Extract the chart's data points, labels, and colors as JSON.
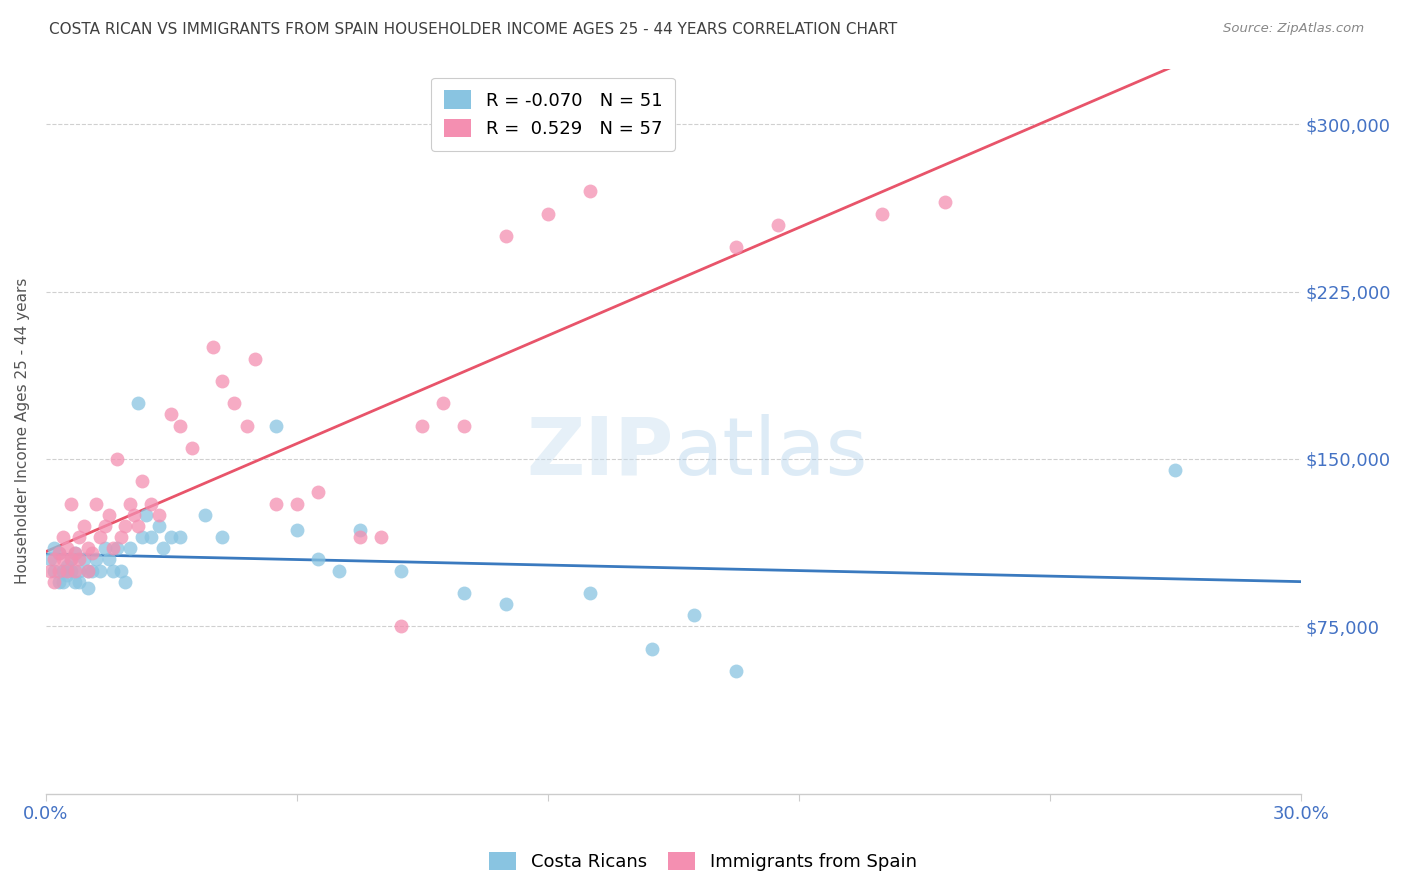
{
  "title": "COSTA RICAN VS IMMIGRANTS FROM SPAIN HOUSEHOLDER INCOME AGES 25 - 44 YEARS CORRELATION CHART",
  "source": "Source: ZipAtlas.com",
  "ylabel": "Householder Income Ages 25 - 44 years",
  "ytick_labels": [
    "$75,000",
    "$150,000",
    "$225,000",
    "$300,000"
  ],
  "ytick_values": [
    75000,
    150000,
    225000,
    300000
  ],
  "ylim": [
    0,
    325000
  ],
  "xlim": [
    0.0,
    0.3
  ],
  "watermark_zip": "ZIP",
  "watermark_atlas": "atlas",
  "legend_r1": "R = -0.070",
  "legend_n1": "N = 51",
  "legend_r2": "R =  0.529",
  "legend_n2": "N = 57",
  "color_blue": "#89c4e1",
  "color_pink": "#f48fb1",
  "color_line_blue": "#3a7abf",
  "color_line_pink": "#e8546a",
  "color_axis_labels": "#4472c4",
  "color_title": "#404040",
  "background_color": "#ffffff",
  "costa_ricans_x": [
    0.001,
    0.002,
    0.002,
    0.003,
    0.003,
    0.004,
    0.004,
    0.005,
    0.005,
    0.006,
    0.006,
    0.007,
    0.007,
    0.008,
    0.008,
    0.009,
    0.01,
    0.01,
    0.011,
    0.012,
    0.013,
    0.014,
    0.015,
    0.016,
    0.017,
    0.018,
    0.019,
    0.02,
    0.022,
    0.023,
    0.024,
    0.025,
    0.027,
    0.028,
    0.03,
    0.032,
    0.038,
    0.042,
    0.055,
    0.06,
    0.065,
    0.07,
    0.075,
    0.085,
    0.1,
    0.11,
    0.13,
    0.145,
    0.155,
    0.165,
    0.27
  ],
  "costa_ricans_y": [
    105000,
    100000,
    110000,
    95000,
    108000,
    100000,
    95000,
    102000,
    98000,
    105000,
    100000,
    95000,
    108000,
    100000,
    95000,
    105000,
    100000,
    92000,
    100000,
    105000,
    100000,
    110000,
    105000,
    100000,
    110000,
    100000,
    95000,
    110000,
    175000,
    115000,
    125000,
    115000,
    120000,
    110000,
    115000,
    115000,
    125000,
    115000,
    165000,
    118000,
    105000,
    100000,
    118000,
    100000,
    90000,
    85000,
    90000,
    65000,
    80000,
    55000,
    145000
  ],
  "spain_x": [
    0.001,
    0.002,
    0.002,
    0.003,
    0.003,
    0.004,
    0.004,
    0.005,
    0.005,
    0.006,
    0.006,
    0.007,
    0.007,
    0.008,
    0.008,
    0.009,
    0.01,
    0.01,
    0.011,
    0.012,
    0.013,
    0.014,
    0.015,
    0.016,
    0.017,
    0.018,
    0.019,
    0.02,
    0.021,
    0.022,
    0.023,
    0.025,
    0.027,
    0.03,
    0.032,
    0.035,
    0.04,
    0.042,
    0.045,
    0.048,
    0.05,
    0.055,
    0.06,
    0.065,
    0.075,
    0.08,
    0.085,
    0.09,
    0.095,
    0.1,
    0.11,
    0.12,
    0.13,
    0.165,
    0.175,
    0.2,
    0.215
  ],
  "spain_y": [
    100000,
    105000,
    95000,
    100000,
    108000,
    105000,
    115000,
    100000,
    110000,
    105000,
    130000,
    100000,
    108000,
    115000,
    105000,
    120000,
    100000,
    110000,
    108000,
    130000,
    115000,
    120000,
    125000,
    110000,
    150000,
    115000,
    120000,
    130000,
    125000,
    120000,
    140000,
    130000,
    125000,
    170000,
    165000,
    155000,
    200000,
    185000,
    175000,
    165000,
    195000,
    130000,
    130000,
    135000,
    115000,
    115000,
    75000,
    165000,
    175000,
    165000,
    250000,
    260000,
    270000,
    245000,
    255000,
    260000,
    265000
  ]
}
